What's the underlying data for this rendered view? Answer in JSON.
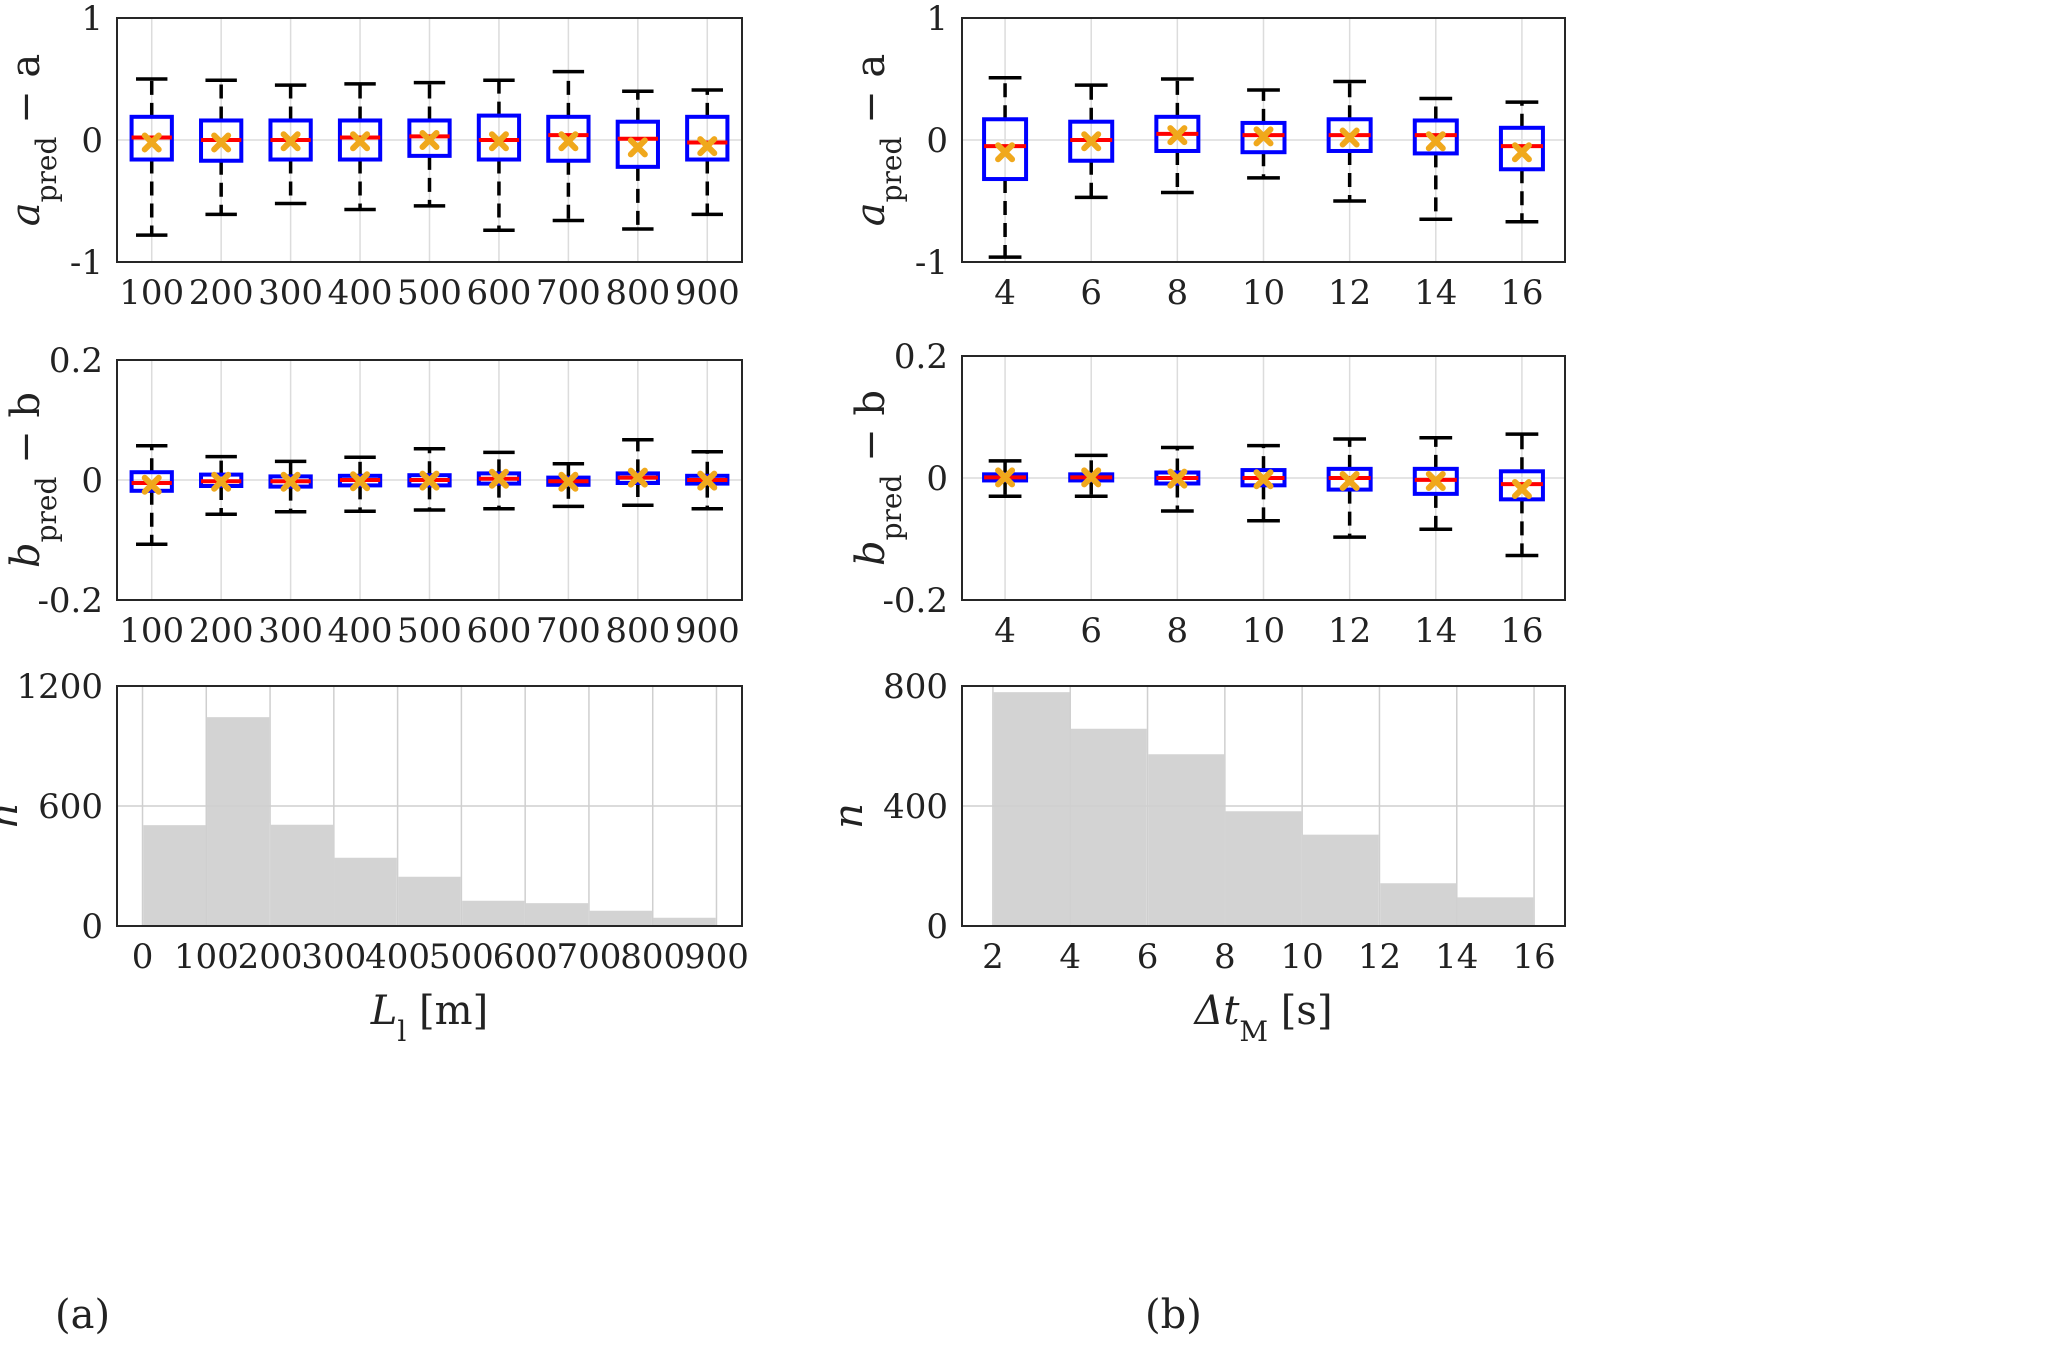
{
  "panel_labels": [
    "(a)",
    "(b)"
  ],
  "chart_data": [
    {
      "id": "a_top",
      "type": "box",
      "ylabel": {
        "base": "a",
        "sub": "pred",
        "tail": " − a"
      },
      "ylim": [
        -1,
        1
      ],
      "yticks": [
        -1,
        0,
        1
      ],
      "ytick_labels": [
        "-1",
        "0",
        "1"
      ],
      "categories": [
        "100",
        "200",
        "300",
        "400",
        "500",
        "600",
        "700",
        "800",
        "900"
      ],
      "boxes": [
        {
          "whislo": -0.78,
          "q1": -0.16,
          "med": 0.02,
          "q3": 0.19,
          "whishi": 0.5,
          "mean": -0.02
        },
        {
          "whislo": -0.61,
          "q1": -0.17,
          "med": 0.0,
          "q3": 0.16,
          "whishi": 0.49,
          "mean": -0.02
        },
        {
          "whislo": -0.52,
          "q1": -0.16,
          "med": 0.0,
          "q3": 0.16,
          "whishi": 0.45,
          "mean": -0.01
        },
        {
          "whislo": -0.57,
          "q1": -0.16,
          "med": 0.02,
          "q3": 0.16,
          "whishi": 0.46,
          "mean": -0.01
        },
        {
          "whislo": -0.54,
          "q1": -0.13,
          "med": 0.03,
          "q3": 0.16,
          "whishi": 0.47,
          "mean": 0.0
        },
        {
          "whislo": -0.74,
          "q1": -0.16,
          "med": 0.0,
          "q3": 0.2,
          "whishi": 0.49,
          "mean": -0.01
        },
        {
          "whislo": -0.66,
          "q1": -0.17,
          "med": 0.04,
          "q3": 0.19,
          "whishi": 0.56,
          "mean": -0.01
        },
        {
          "whislo": -0.73,
          "q1": -0.22,
          "med": 0.01,
          "q3": 0.15,
          "whishi": 0.4,
          "mean": -0.06
        },
        {
          "whislo": -0.61,
          "q1": -0.16,
          "med": -0.02,
          "q3": 0.19,
          "whishi": 0.41,
          "mean": -0.05
        }
      ]
    },
    {
      "id": "a_mid",
      "type": "box",
      "ylabel": {
        "base": "b",
        "sub": "pred",
        "tail": " − b"
      },
      "ylim": [
        -0.2,
        0.2
      ],
      "yticks": [
        -0.2,
        0,
        0.2
      ],
      "ytick_labels": [
        "-0.2",
        "0",
        "0.2"
      ],
      "categories": [
        "100",
        "200",
        "300",
        "400",
        "500",
        "600",
        "700",
        "800",
        "900"
      ],
      "boxes": [
        {
          "whislo": -0.107,
          "q1": -0.018,
          "med": -0.005,
          "q3": 0.013,
          "whishi": 0.057,
          "mean": -0.008
        },
        {
          "whislo": -0.057,
          "q1": -0.01,
          "med": -0.002,
          "q3": 0.009,
          "whishi": 0.039,
          "mean": -0.003
        },
        {
          "whislo": -0.053,
          "q1": -0.011,
          "med": -0.002,
          "q3": 0.006,
          "whishi": 0.031,
          "mean": -0.003
        },
        {
          "whislo": -0.052,
          "q1": -0.009,
          "med": 0.0,
          "q3": 0.007,
          "whishi": 0.038,
          "mean": -0.002
        },
        {
          "whislo": -0.05,
          "q1": -0.009,
          "med": 0.0,
          "q3": 0.008,
          "whishi": 0.052,
          "mean": -0.001
        },
        {
          "whislo": -0.048,
          "q1": -0.006,
          "med": 0.002,
          "q3": 0.011,
          "whishi": 0.046,
          "mean": 0.002
        },
        {
          "whislo": -0.044,
          "q1": -0.008,
          "med": -0.002,
          "q3": 0.004,
          "whishi": 0.027,
          "mean": -0.003
        },
        {
          "whislo": -0.042,
          "q1": -0.005,
          "med": 0.004,
          "q3": 0.011,
          "whishi": 0.067,
          "mean": 0.004
        },
        {
          "whislo": -0.048,
          "q1": -0.006,
          "med": 0.0,
          "q3": 0.007,
          "whishi": 0.047,
          "mean": -0.001
        }
      ]
    },
    {
      "id": "a_bot",
      "type": "bar",
      "ylabel": {
        "base": "n",
        "sub": "",
        "tail": ""
      },
      "xlabel": {
        "base": "L",
        "sub": "l",
        "tail": " [m]"
      },
      "xlim": [
        -40,
        940
      ],
      "xticks": [
        0,
        100,
        200,
        300,
        400,
        500,
        600,
        700,
        800,
        900
      ],
      "xtick_labels": [
        "0",
        "100",
        "200",
        "300",
        "400",
        "500",
        "600",
        "700",
        "800",
        "900"
      ],
      "ylim": [
        0,
        1200
      ],
      "yticks": [
        0,
        600,
        1200
      ],
      "ytick_labels": [
        "0",
        "600",
        "1200"
      ],
      "bin_edges": [
        0,
        100,
        200,
        300,
        400,
        500,
        600,
        700,
        800,
        900
      ],
      "values": [
        508,
        1048,
        510,
        345,
        250,
        130,
        118,
        80,
        45
      ]
    },
    {
      "id": "b_top",
      "type": "box",
      "ylabel": {
        "base": "a",
        "sub": "pred",
        "tail": " − a"
      },
      "ylim": [
        -1,
        1
      ],
      "yticks": [
        -1,
        0,
        1
      ],
      "ytick_labels": [
        "-1",
        "0",
        "1"
      ],
      "categories": [
        "4",
        "6",
        "8",
        "10",
        "12",
        "14",
        "16"
      ],
      "boxes": [
        {
          "whislo": -0.96,
          "q1": -0.32,
          "med": -0.05,
          "q3": 0.17,
          "whishi": 0.51,
          "mean": -0.1
        },
        {
          "whislo": -0.47,
          "q1": -0.17,
          "med": 0.0,
          "q3": 0.15,
          "whishi": 0.45,
          "mean": -0.01
        },
        {
          "whislo": -0.43,
          "q1": -0.09,
          "med": 0.05,
          "q3": 0.19,
          "whishi": 0.5,
          "mean": 0.04
        },
        {
          "whislo": -0.31,
          "q1": -0.1,
          "med": 0.04,
          "q3": 0.14,
          "whishi": 0.41,
          "mean": 0.03
        },
        {
          "whislo": -0.5,
          "q1": -0.09,
          "med": 0.04,
          "q3": 0.17,
          "whishi": 0.48,
          "mean": 0.02
        },
        {
          "whislo": -0.65,
          "q1": -0.11,
          "med": 0.04,
          "q3": 0.16,
          "whishi": 0.34,
          "mean": -0.01
        },
        {
          "whislo": -0.67,
          "q1": -0.24,
          "med": -0.05,
          "q3": 0.1,
          "whishi": 0.31,
          "mean": -0.1
        }
      ]
    },
    {
      "id": "b_mid",
      "type": "box",
      "ylabel": {
        "base": "b",
        "sub": "pred",
        "tail": " − b"
      },
      "ylim": [
        -0.2,
        0.2
      ],
      "yticks": [
        -0.2,
        0,
        0.2
      ],
      "ytick_labels": [
        "-0.2",
        "0",
        "0.2"
      ],
      "categories": [
        "4",
        "6",
        "8",
        "10",
        "12",
        "14",
        "16"
      ],
      "boxes": [
        {
          "whislo": -0.03,
          "q1": -0.004,
          "med": 0.001,
          "q3": 0.006,
          "whishi": 0.028,
          "mean": 0.001
        },
        {
          "whislo": -0.03,
          "q1": -0.004,
          "med": 0.001,
          "q3": 0.006,
          "whishi": 0.037,
          "mean": 0.001
        },
        {
          "whislo": -0.054,
          "q1": -0.009,
          "med": 0.0,
          "q3": 0.009,
          "whishi": 0.05,
          "mean": -0.001
        },
        {
          "whislo": -0.07,
          "q1": -0.012,
          "med": 0.0,
          "q3": 0.013,
          "whishi": 0.053,
          "mean": -0.002
        },
        {
          "whislo": -0.097,
          "q1": -0.019,
          "med": 0.0,
          "q3": 0.015,
          "whishi": 0.064,
          "mean": -0.005
        },
        {
          "whislo": -0.084,
          "q1": -0.026,
          "med": -0.003,
          "q3": 0.015,
          "whishi": 0.066,
          "mean": -0.005
        },
        {
          "whislo": -0.127,
          "q1": -0.035,
          "med": -0.01,
          "q3": 0.011,
          "whishi": 0.072,
          "mean": -0.018
        }
      ]
    },
    {
      "id": "b_bot",
      "type": "bar",
      "ylabel": {
        "base": "n",
        "sub": "",
        "tail": ""
      },
      "xlabel": {
        "base": "Δt",
        "sub": "M",
        "tail": " [s]"
      },
      "xlim": [
        1.2,
        16.8
      ],
      "xticks": [
        2,
        4,
        6,
        8,
        10,
        12,
        14,
        16
      ],
      "xtick_labels": [
        "2",
        "4",
        "6",
        "8",
        "10",
        "12",
        "14",
        "16"
      ],
      "ylim": [
        0,
        800
      ],
      "yticks": [
        0,
        400,
        800
      ],
      "ytick_labels": [
        "0",
        "400",
        "800"
      ],
      "bin_edges": [
        2,
        4,
        6,
        8,
        10,
        12,
        14,
        16
      ],
      "values": [
        782,
        660,
        575,
        385,
        307,
        145,
        98
      ]
    }
  ]
}
